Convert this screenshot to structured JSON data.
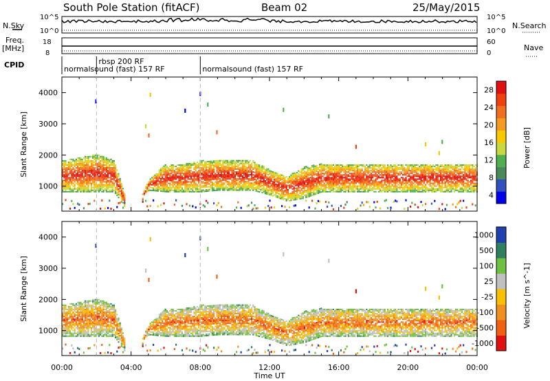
{
  "header": {
    "station": "South Pole Station (fitACF)",
    "beam": "Beam 02",
    "date": "25/May/2015"
  },
  "summary_strip": {
    "nsky_label": "N.Sky",
    "nsearch_label": "N.Search",
    "freq_label": "Freq.",
    "freq_unit": "[MHz]",
    "nave_label": "Nave",
    "cpid_label": "CPID",
    "n_ticks": [
      "10^5",
      "10^0"
    ],
    "n_ticks_right": [
      "10^5",
      "10^0"
    ],
    "freq_ticks": [
      "18",
      "8"
    ],
    "nave_ticks": [
      "60",
      "0"
    ]
  },
  "cpid": {
    "segments": [
      {
        "label": "normalsound (fast) 157 RF",
        "start_hour": 0,
        "end_hour": 2
      },
      {
        "label": "rbsp 200 RF",
        "start_hour": 2,
        "end_hour": 8
      },
      {
        "label": "normalsound (fast) 157 RF",
        "start_hour": 8,
        "end_hour": 24
      }
    ],
    "overlap_text": "normalsound (fast) 157 RF"
  },
  "x_axis": {
    "label": "Time UT",
    "ticks": [
      "00:00",
      "04:00",
      "08:00",
      "12:00",
      "16:00",
      "20:00",
      "00:00"
    ]
  },
  "colors": {
    "power": [
      "#0000ee",
      "#3050c0",
      "#4a8a5a",
      "#50b050",
      "#c8d840",
      "#f8c800",
      "#f49a20",
      "#f07020",
      "#f04010",
      "#e01010"
    ],
    "velocity": [
      "#2040b0",
      "#308060",
      "#70c040",
      "#c0c0c0",
      "#f8c000",
      "#f09020",
      "#f06010",
      "#e01010"
    ]
  },
  "chart_data": [
    {
      "type": "heatmap",
      "title": "",
      "xlabel": "",
      "ylabel": "Slant Range [km]",
      "xlim": [
        0,
        24
      ],
      "ylim": [
        200,
        4500
      ],
      "y_ticks": [
        "1000",
        "2000",
        "3000",
        "4000"
      ],
      "colorbar": {
        "label": "Power [dB]",
        "ticks": [
          "28",
          "24",
          "20",
          "16",
          "12",
          "8",
          "4"
        ],
        "range": [
          0,
          30
        ]
      },
      "main_echo_band": {
        "x_hours": [
          0,
          1,
          2,
          3,
          4,
          5,
          6,
          7,
          8,
          9,
          10,
          11,
          12,
          13,
          14,
          15,
          16,
          17,
          18,
          19,
          20,
          21,
          22,
          23,
          24
        ],
        "range_low_km": [
          800,
          800,
          800,
          800,
          0,
          850,
          800,
          800,
          800,
          850,
          850,
          850,
          700,
          500,
          600,
          800,
          800,
          800,
          800,
          800,
          800,
          800,
          800,
          800,
          800
        ],
        "range_high_km": [
          1800,
          1900,
          2000,
          1800,
          0,
          1200,
          1700,
          1700,
          1800,
          1800,
          1800,
          1800,
          1500,
          1300,
          1600,
          1700,
          1700,
          1700,
          1700,
          1700,
          1700,
          1700,
          1700,
          1700,
          1700
        ]
      },
      "typical_power_db": {
        "band_center": 28,
        "band_edge": 12
      }
    },
    {
      "type": "heatmap",
      "title": "",
      "xlabel": "Time UT",
      "ylabel": "Slant Range [km]",
      "xlim": [
        0,
        24
      ],
      "ylim": [
        200,
        4500
      ],
      "y_ticks": [
        "1000",
        "2000",
        "3000",
        "4000"
      ],
      "colorbar": {
        "label": "Velocity [m s^-1]",
        "ticks": [
          "1000",
          "500",
          "100",
          "25",
          "-25",
          "-100",
          "-500",
          "-1000"
        ],
        "range": [
          -1000,
          1000
        ]
      },
      "main_echo_band": {
        "x_hours": [
          0,
          1,
          2,
          3,
          4,
          5,
          6,
          7,
          8,
          9,
          10,
          11,
          12,
          13,
          14,
          15,
          16,
          17,
          18,
          19,
          20,
          21,
          22,
          23,
          24
        ],
        "range_low_km": [
          800,
          800,
          800,
          800,
          0,
          850,
          800,
          800,
          800,
          850,
          850,
          850,
          700,
          500,
          600,
          800,
          800,
          800,
          800,
          800,
          800,
          800,
          800,
          800,
          800
        ],
        "range_high_km": [
          1800,
          1900,
          2000,
          1800,
          0,
          1200,
          1700,
          1700,
          1800,
          1800,
          1800,
          1800,
          1500,
          1300,
          1600,
          1700,
          1700,
          1700,
          1700,
          1700,
          1700,
          1700,
          1700,
          1700,
          1700
        ]
      },
      "typical_velocity": {
        "band_center": -500,
        "band_edge": 100
      }
    }
  ]
}
